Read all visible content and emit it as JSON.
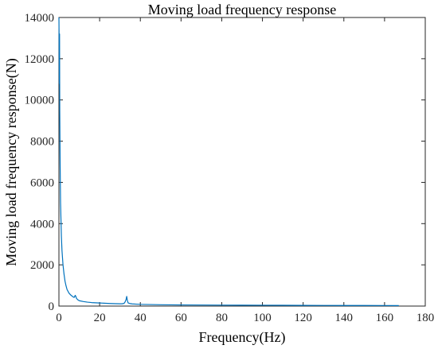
{
  "chart_data": {
    "type": "line",
    "title": "Moving load frequency response",
    "xlabel": "Frequency(Hz)",
    "ylabel": "Moving load frequency response(N)",
    "xlim": [
      0,
      180
    ],
    "ylim": [
      0,
      14000
    ],
    "xticks": [
      0,
      20,
      40,
      60,
      80,
      100,
      120,
      140,
      160,
      180
    ],
    "yticks": [
      0,
      2000,
      4000,
      6000,
      8000,
      10000,
      12000,
      14000
    ],
    "xtick_labels": [
      "0",
      "20",
      "40",
      "60",
      "80",
      "100",
      "120",
      "140",
      "160",
      "180"
    ],
    "ytick_labels": [
      "0",
      "2000",
      "4000",
      "6000",
      "8000",
      "10000",
      "12000",
      "14000"
    ],
    "grid": false,
    "line_color": "#0072BD",
    "series": [
      {
        "x": [
          0,
          0.1,
          0.2,
          0.3,
          0.4,
          0.5,
          0.6,
          0.8,
          1.0,
          1.2,
          1.5,
          2.0,
          2.5,
          3.0,
          3.5,
          4.0,
          5.0,
          6.0,
          7.0,
          7.5,
          8.0,
          8.3,
          8.6,
          9.0,
          9.5,
          10,
          12,
          14,
          16,
          18,
          20,
          22,
          25,
          28,
          30,
          31,
          32,
          32.5,
          33,
          33.3,
          33.6,
          34,
          35,
          36,
          38,
          40,
          42,
          45,
          50,
          55,
          60,
          70,
          80,
          90,
          100,
          110,
          120,
          130,
          140,
          150,
          160,
          165,
          167
        ],
        "y": [
          14000,
          12800,
          10800,
          13200,
          9500,
          8100,
          6800,
          5000,
          4200,
          3400,
          2700,
          2000,
          1550,
          1200,
          980,
          800,
          620,
          520,
          440,
          420,
          520,
          470,
          380,
          330,
          290,
          260,
          220,
          190,
          170,
          160,
          150,
          140,
          125,
          115,
          110,
          110,
          130,
          200,
          320,
          470,
          280,
          150,
          120,
          105,
          95,
          85,
          80,
          75,
          65,
          60,
          55,
          50,
          45,
          42,
          40,
          38,
          35,
          32,
          30,
          28,
          26,
          25,
          25
        ]
      }
    ]
  }
}
